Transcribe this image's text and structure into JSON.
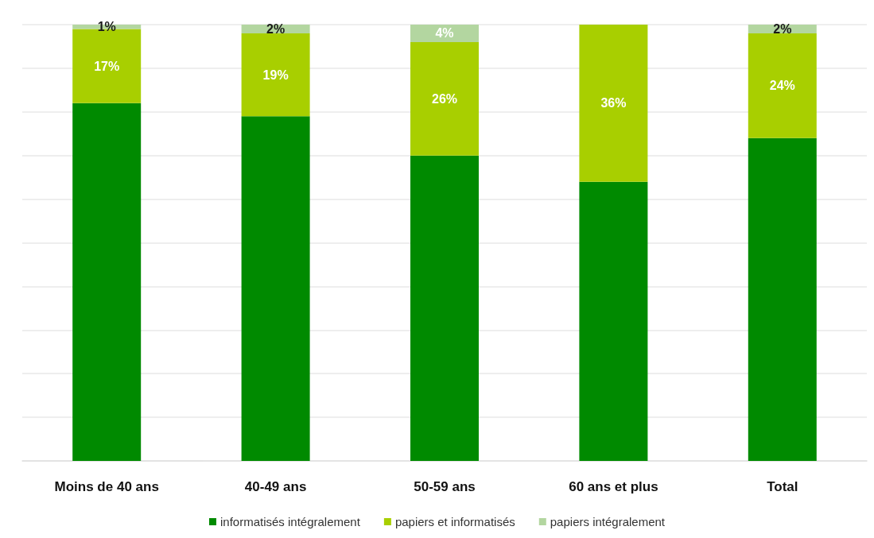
{
  "chart_data": {
    "type": "bar",
    "stacked": true,
    "categories": [
      "Moins de 40 ans",
      "40-49 ans",
      "50-59 ans",
      "60 ans et plus",
      "Total"
    ],
    "series": [
      {
        "name": "informatisés intégralement",
        "color": "#008a00",
        "values": [
          82,
          79,
          70,
          64,
          74
        ]
      },
      {
        "name": "papiers et informatisés",
        "color": "#a8cf00",
        "values": [
          17,
          19,
          26,
          36,
          24
        ],
        "value_labels": [
          "17%",
          "19%",
          "26%",
          "36%",
          "24%"
        ]
      },
      {
        "name": "papiers intégralement",
        "color": "#b3d6a0",
        "values": [
          1,
          2,
          4,
          null,
          2
        ],
        "value_labels": [
          "1%",
          "2%",
          "4%",
          null,
          "2%"
        ]
      }
    ],
    "ylim": [
      0,
      100
    ],
    "yticks": [
      {
        "value": 0,
        "label": null
      },
      {
        "value": 10,
        "label": null
      },
      {
        "value": 20,
        "label": null
      },
      {
        "value": 30,
        "label": null
      },
      {
        "value": 40,
        "label": null
      },
      {
        "value": 50,
        "label": null
      },
      {
        "value": 60,
        "label": null
      },
      {
        "value": 70,
        "label": null
      },
      {
        "value": 80,
        "label": null
      },
      {
        "value": 90,
        "label": null
      },
      {
        "value": 100,
        "label": null
      }
    ],
    "grid": "y",
    "legend": "bottom",
    "tick_labels": "x"
  }
}
